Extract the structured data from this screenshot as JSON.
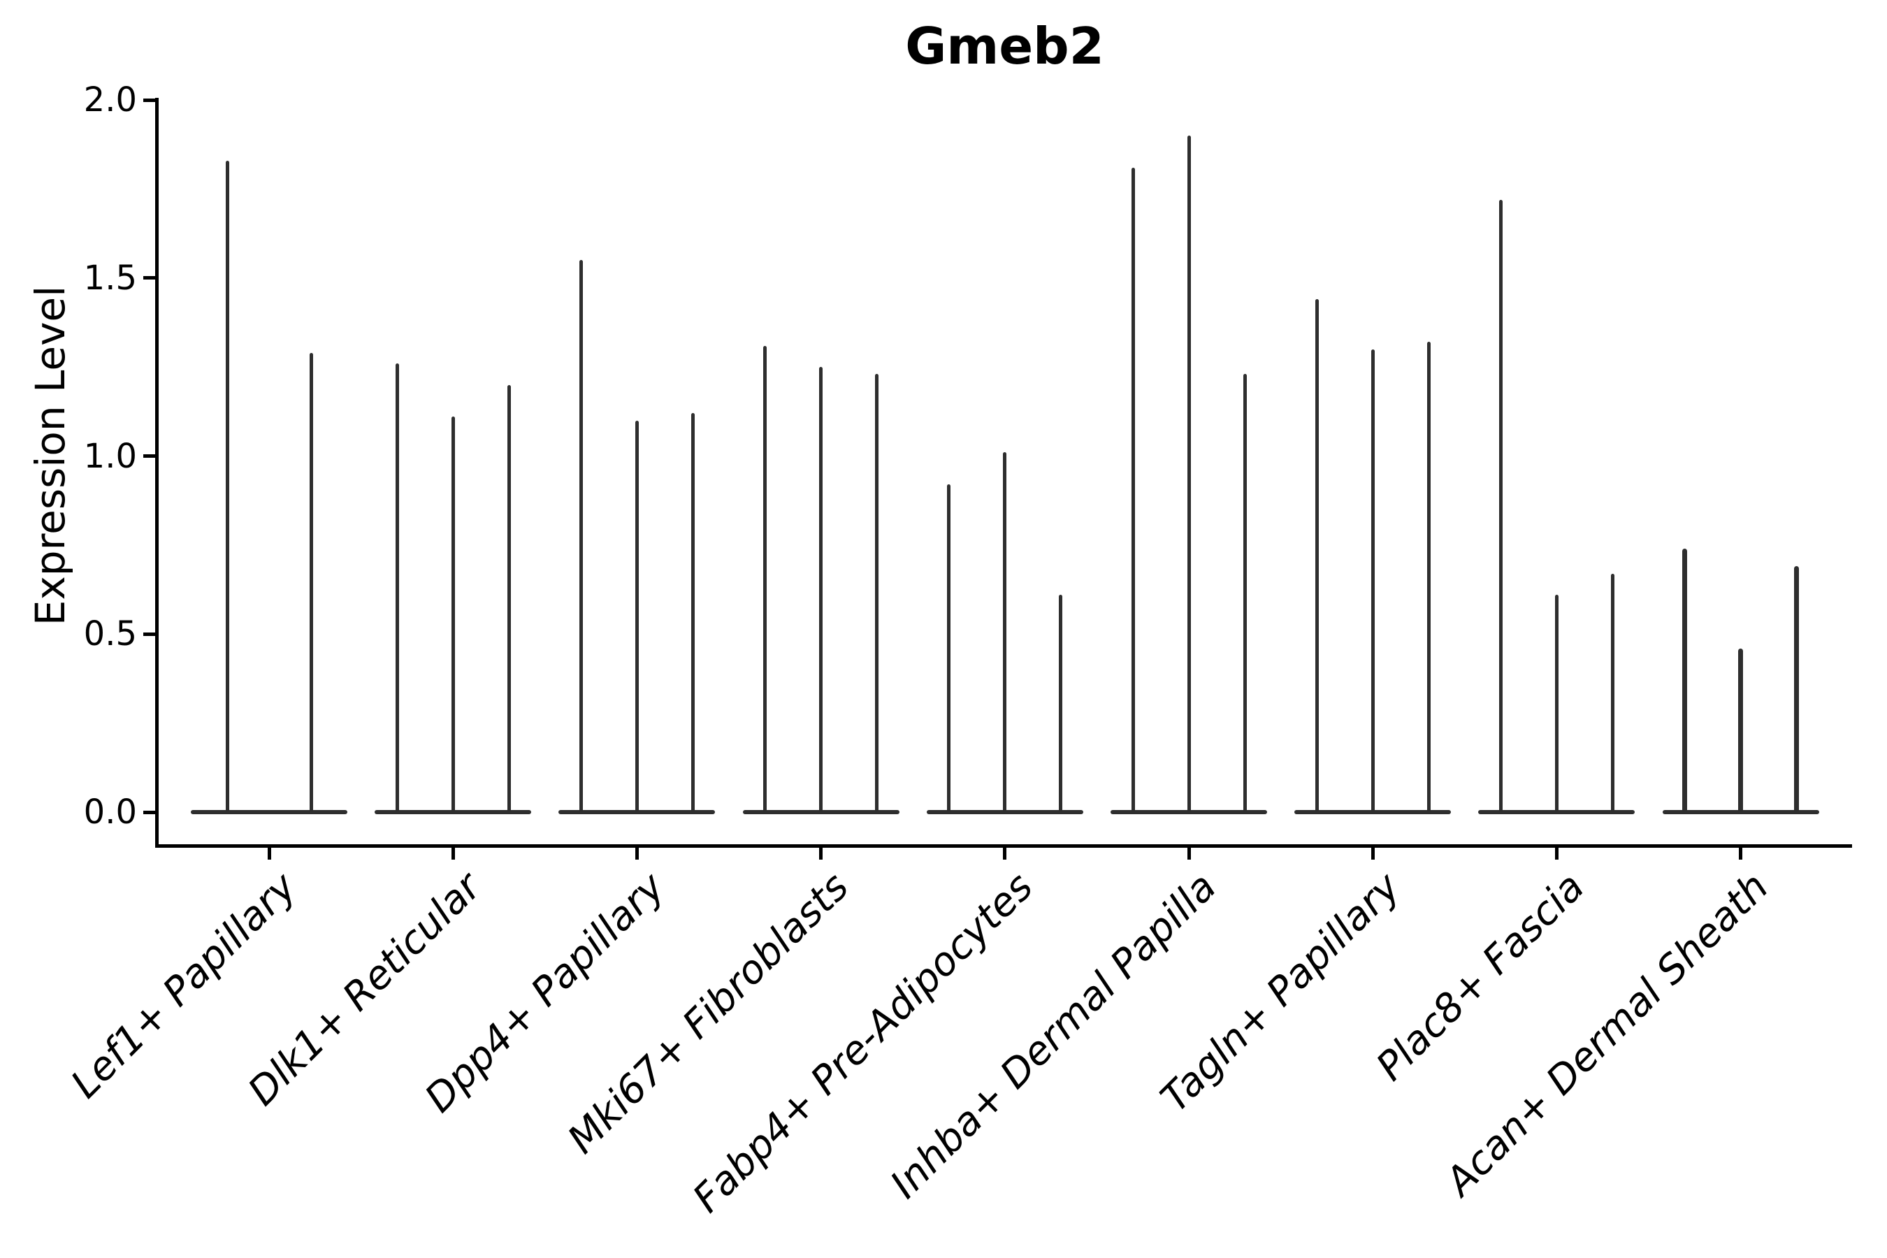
{
  "figure": {
    "title": "Gmeb2",
    "ylabel": "Expression Level"
  },
  "chart_data": {
    "type": "violin",
    "title": "Gmeb2",
    "xlabel": "",
    "ylabel": "Expression Level",
    "ylim": [
      0.0,
      2.0
    ],
    "yticks": [
      0.0,
      0.5,
      1.0,
      1.5,
      2.0
    ],
    "ytick_labels": [
      "0.0",
      "0.5",
      "1.0",
      "1.5",
      "2.0"
    ],
    "grid": false,
    "legend": "none",
    "categories": [
      "Lef1+ Papillary",
      "Dlk1+ Reticular",
      "Dpp4+ Papillary",
      "Mki67+ Fibroblasts",
      "Fabp4+ Pre-Adipocytes",
      "Inhba+ Dermal Papilla",
      "Tagln+ Papillary",
      "Plac8+ Fascia",
      "Acan+ Dermal Sheath"
    ],
    "groups": [
      {
        "category": "Lef1+ Papillary",
        "violin_peaks": [
          1.83,
          1.29
        ]
      },
      {
        "category": "Dlk1+ Reticular",
        "violin_peaks": [
          1.26,
          1.11,
          1.2
        ]
      },
      {
        "category": "Dpp4+ Papillary",
        "violin_peaks": [
          1.55,
          1.1,
          1.12
        ]
      },
      {
        "category": "Mki67+ Fibroblasts",
        "violin_peaks": [
          1.31,
          1.25,
          1.23
        ]
      },
      {
        "category": "Fabp4+ Pre-Adipocytes",
        "violin_peaks": [
          0.92,
          1.01,
          0.61
        ]
      },
      {
        "category": "Inhba+ Dermal Papilla",
        "violin_peaks": [
          1.81,
          1.9,
          1.23
        ]
      },
      {
        "category": "Tagln+ Papillary",
        "violin_peaks": [
          1.44,
          1.3,
          1.32
        ]
      },
      {
        "category": "Plac8+ Fascia",
        "violin_peaks": [
          1.72,
          0.61,
          0.67
        ]
      },
      {
        "category": "Acan+ Dermal Sheath",
        "violin_peaks": [
          0.74,
          0.46,
          0.69
        ]
      }
    ],
    "style_note": "Needle-thin violins rise from a flat baseline at expression 0; 2-3 violins per category; dark gray (#2e2e2e) on white; no grid, no legend."
  },
  "colors": {
    "violin": "#2e2e2e",
    "axis": "#000000",
    "background": "#ffffff"
  }
}
